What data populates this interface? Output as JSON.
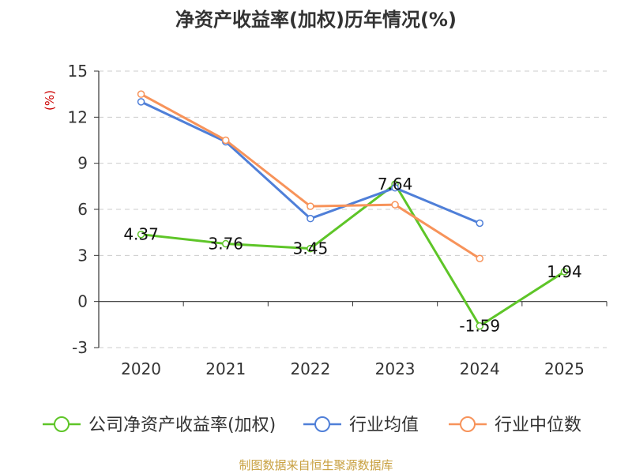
{
  "chart_data": {
    "type": "line",
    "title": "净资产收益率(加权)历年情况(%)",
    "unit_label": "(%)",
    "categories": [
      "2020",
      "2021",
      "2022",
      "2023",
      "2024",
      "2025"
    ],
    "ylim": [
      -3,
      15
    ],
    "yticks": [
      15,
      12,
      9,
      6,
      3,
      0,
      -3
    ],
    "ytick_labels": [
      "15",
      "12",
      "9",
      "6",
      "3",
      "0",
      "-3"
    ],
    "grid": true,
    "legend_position": "bottom",
    "series": [
      {
        "name": "公司净资产收益率(加权)",
        "color": "#5ec528",
        "values": [
          4.37,
          3.76,
          3.45,
          7.64,
          -1.59,
          1.94
        ],
        "labels": [
          "4.37",
          "3.76",
          "3.45",
          "7.64",
          "-1.59",
          "1.94"
        ]
      },
      {
        "name": "行业均值",
        "color": "#4f7fd8",
        "values": [
          13.0,
          10.4,
          5.4,
          7.4,
          5.1,
          null
        ]
      },
      {
        "name": "行业中位数",
        "color": "#f7935a",
        "values": [
          13.5,
          10.5,
          6.2,
          6.3,
          2.8,
          null
        ]
      }
    ],
    "source": "制图数据来自恒生聚源数据库"
  }
}
